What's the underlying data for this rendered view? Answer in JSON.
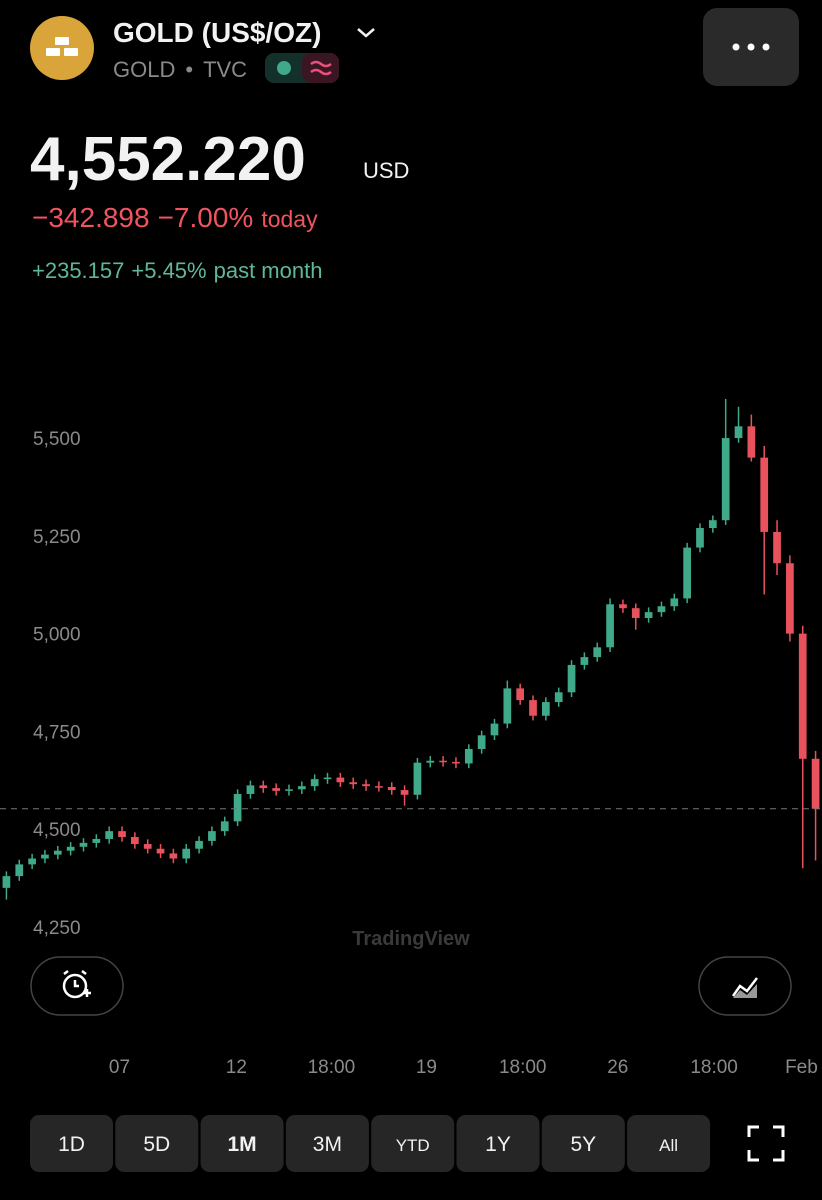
{
  "header": {
    "title": "GOLD (US$/OZ)",
    "symbol": "GOLD",
    "exchange": "TVC"
  },
  "quote": {
    "price": "4,552.220",
    "currency": "USD",
    "change": "−342.898",
    "change_percent": "−7.00%",
    "change_period": "today",
    "month_change": "+235.157",
    "month_change_percent": "+5.45%",
    "month_period": "past month"
  },
  "watermark": "TradingView",
  "timeframes": [
    "1D",
    "5D",
    "1M",
    "3M",
    "YTD",
    "1Y",
    "5Y",
    "All"
  ],
  "selected_timeframe": 2,
  "chart_data": {
    "type": "candlestick",
    "up_color": "#3fa98a",
    "down_color": "#e8525d",
    "ylim": [
      3961,
      5853
    ],
    "yticks": [
      {
        "value": 4250,
        "label": "4,250"
      },
      {
        "value": 4500,
        "label": "4,500"
      },
      {
        "value": 4750,
        "label": "4,750"
      },
      {
        "value": 5000,
        "label": "5,000"
      },
      {
        "value": 5250,
        "label": "5,250"
      },
      {
        "value": 5500,
        "label": "5,500"
      }
    ],
    "xlim": [
      0,
      64
    ],
    "xticks": [
      {
        "value": 9.3,
        "label": "07"
      },
      {
        "value": 18.4,
        "label": "12"
      },
      {
        "value": 25.8,
        "label": "18:00"
      },
      {
        "value": 33.2,
        "label": "19"
      },
      {
        "value": 40.7,
        "label": "18:00"
      },
      {
        "value": 48.1,
        "label": "26"
      },
      {
        "value": 55.6,
        "label": "18:00"
      },
      {
        "value": 62.4,
        "label": "Feb"
      }
    ],
    "open": [
      4350,
      4380,
      4410,
      4425,
      4435,
      4445,
      4455,
      4465,
      4475,
      4495,
      4480,
      4462,
      4450,
      4438,
      4425,
      4450,
      4470,
      4495,
      4520,
      4590,
      4612,
      4605,
      4598,
      4602,
      4610,
      4628,
      4632,
      4620,
      4615,
      4610,
      4608,
      4600,
      4588,
      4670,
      4675,
      4672,
      4668,
      4705,
      4740,
      4770,
      4860,
      4830,
      4790,
      4825,
      4850,
      4920,
      4940,
      4965,
      5075,
      5065,
      5040,
      5055,
      5070,
      5090,
      5220,
      5270,
      5290,
      5500,
      5530,
      5450,
      5260,
      5180,
      5000,
      4680
    ],
    "high": [
      4392,
      4422,
      4437,
      4447,
      4457,
      4467,
      4477,
      4487,
      4507,
      4507,
      4492,
      4474,
      4462,
      4450,
      4462,
      4482,
      4507,
      4532,
      4602,
      4624,
      4624,
      4617,
      4614,
      4622,
      4640,
      4644,
      4644,
      4632,
      4627,
      4622,
      4620,
      4612,
      4682,
      4687,
      4687,
      4684,
      4717,
      4752,
      4782,
      4880,
      4872,
      4842,
      4837,
      4862,
      4932,
      4952,
      4977,
      5090,
      5087,
      5077,
      5067,
      5082,
      5102,
      5232,
      5282,
      5302,
      5600,
      5580,
      5560,
      5480,
      5290,
      5200,
      5020,
      4700
    ],
    "low": [
      4320,
      4368,
      4398,
      4413,
      4423,
      4433,
      4443,
      4453,
      4463,
      4468,
      4450,
      4438,
      4426,
      4413,
      4413,
      4438,
      4458,
      4483,
      4508,
      4578,
      4593,
      4586,
      4586,
      4590,
      4598,
      4616,
      4608,
      4603,
      4598,
      4596,
      4588,
      4560,
      4576,
      4658,
      4660,
      4656,
      4656,
      4693,
      4728,
      4758,
      4818,
      4778,
      4778,
      4813,
      4838,
      4908,
      4928,
      4953,
      5053,
      5010,
      5028,
      5043,
      5058,
      5078,
      5208,
      5258,
      5278,
      5488,
      5440,
      5100,
      5150,
      4980,
      4400,
      4420
    ],
    "close": [
      4380,
      4410,
      4425,
      4435,
      4445,
      4455,
      4465,
      4475,
      4495,
      4480,
      4462,
      4450,
      4438,
      4425,
      4450,
      4470,
      4495,
      4520,
      4590,
      4612,
      4605,
      4598,
      4602,
      4610,
      4628,
      4632,
      4620,
      4615,
      4610,
      4608,
      4600,
      4588,
      4670,
      4675,
      4672,
      4668,
      4705,
      4740,
      4770,
      4860,
      4830,
      4790,
      4825,
      4850,
      4920,
      4940,
      4965,
      5075,
      5065,
      5040,
      5055,
      5070,
      5090,
      5220,
      5270,
      5290,
      5500,
      5530,
      5450,
      5260,
      5180,
      5000,
      4680,
      4552.22
    ]
  }
}
